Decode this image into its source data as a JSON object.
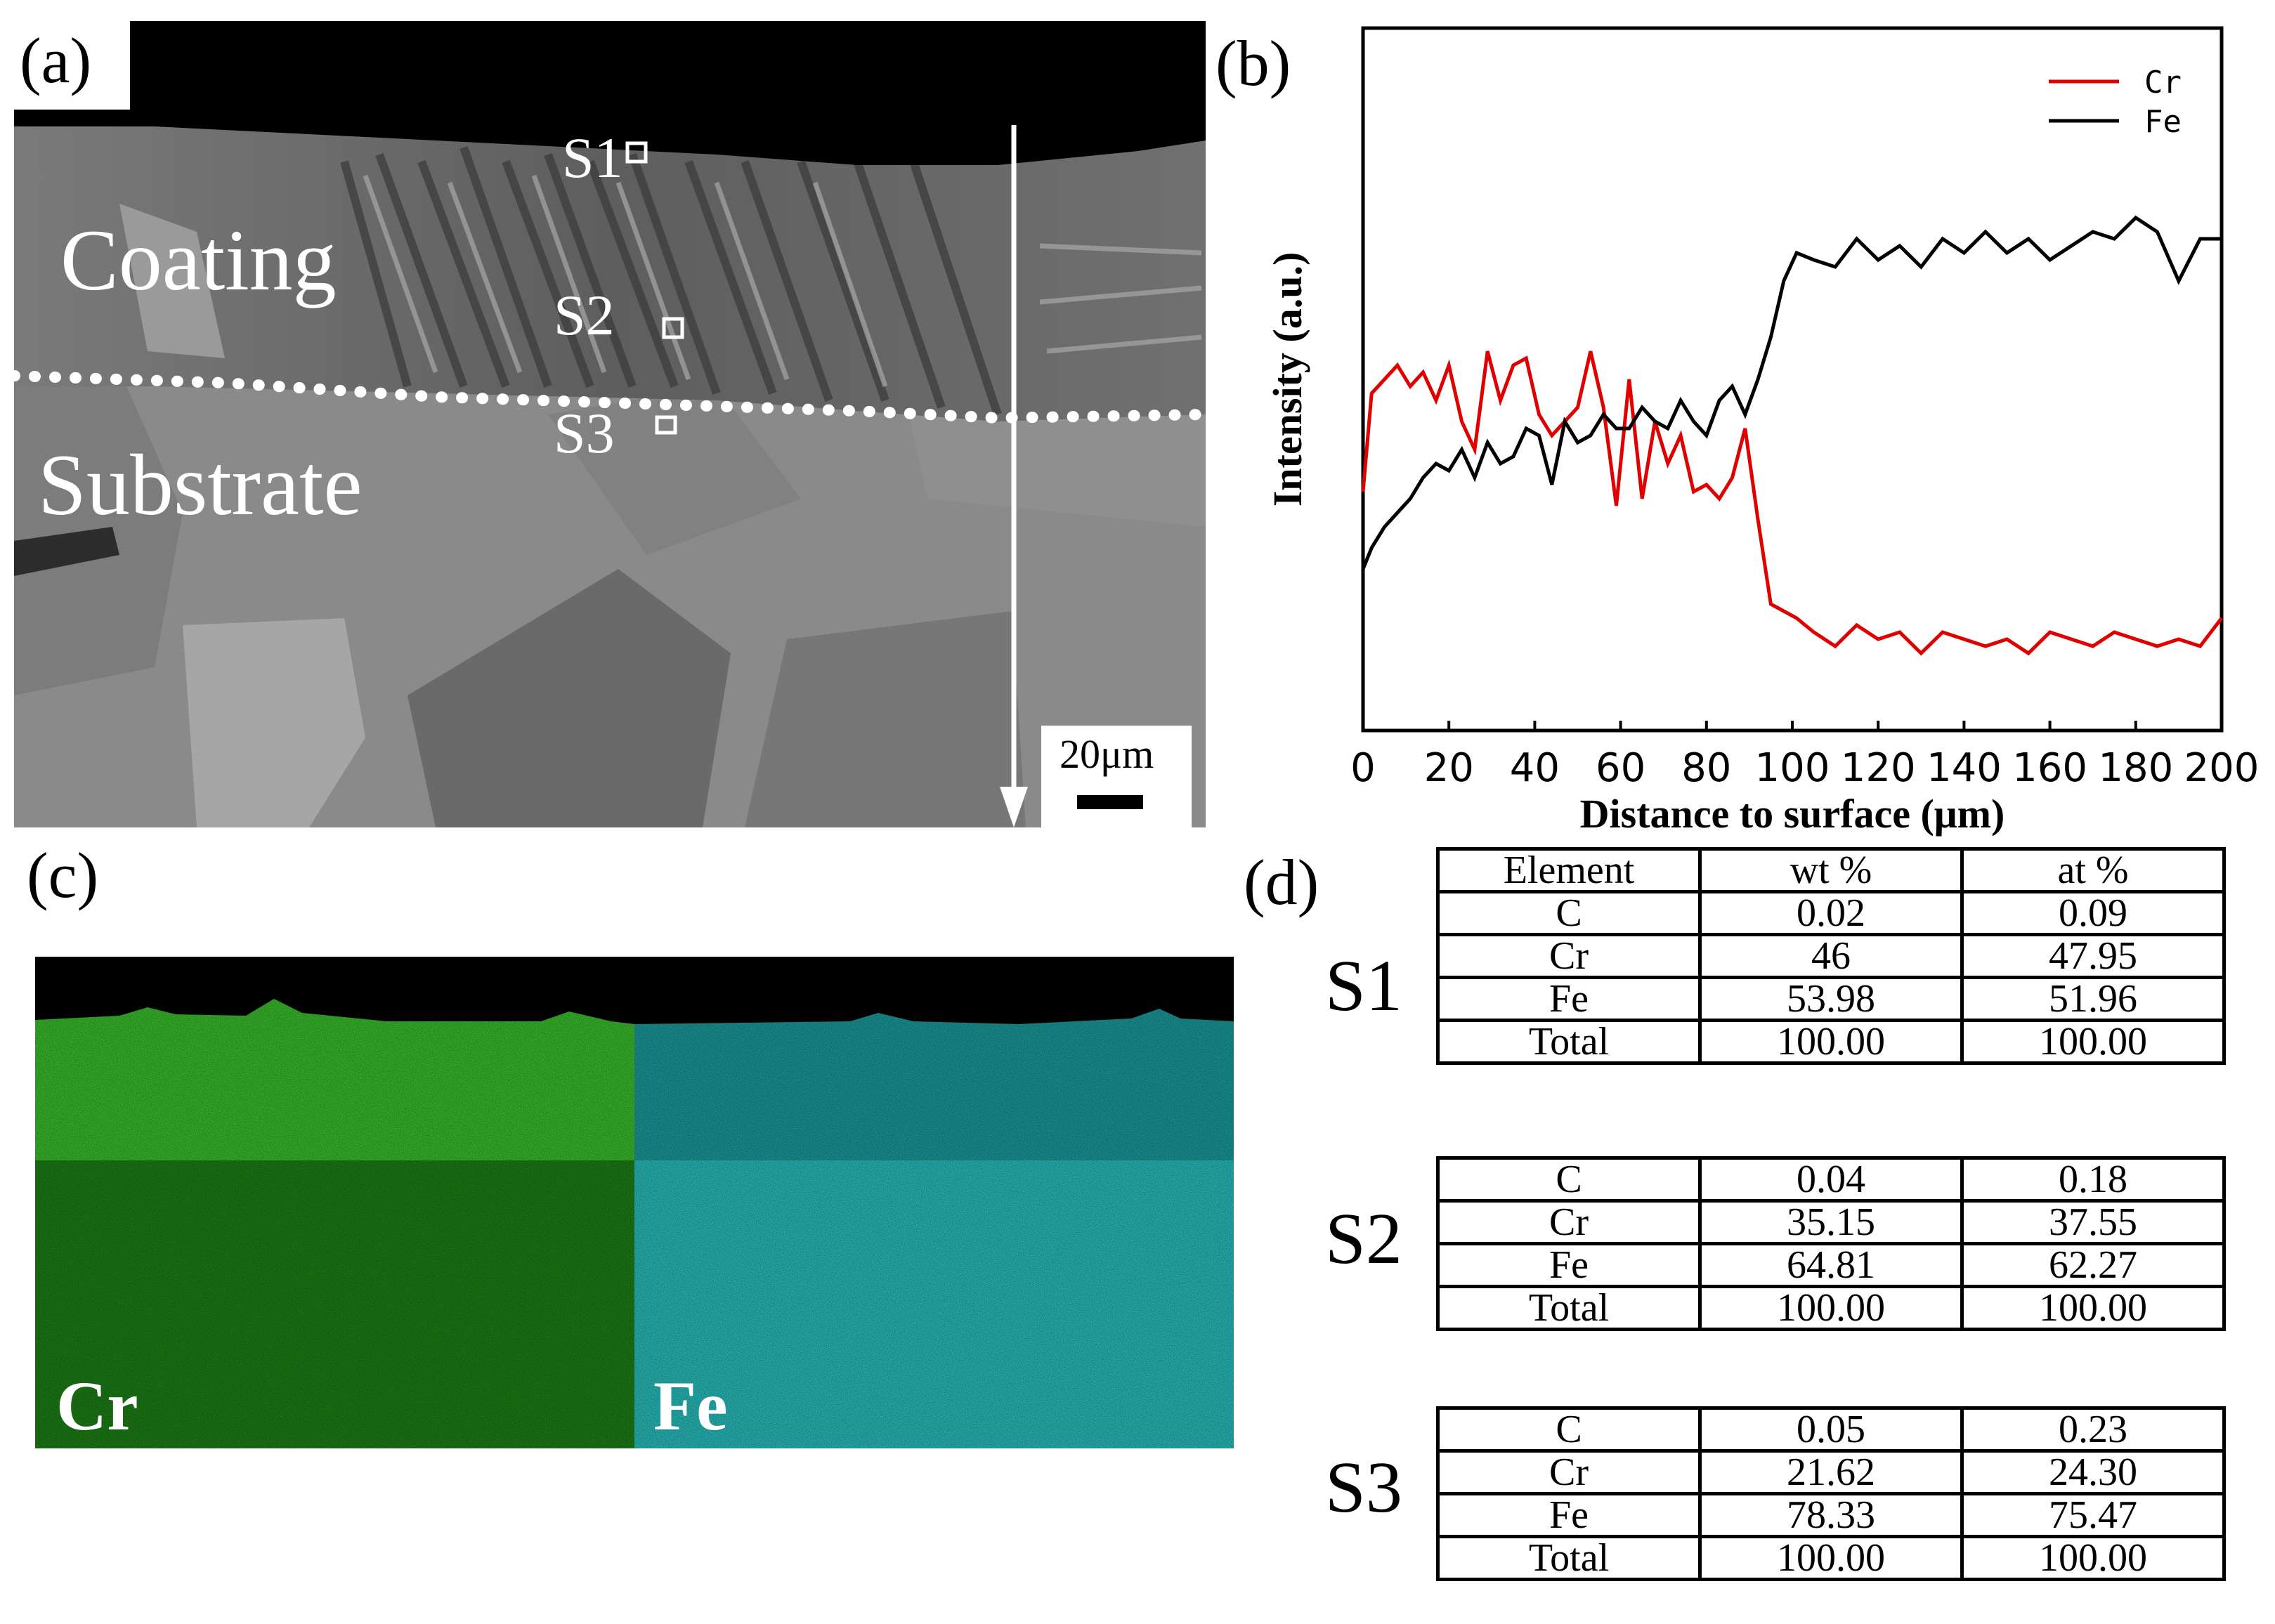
{
  "panels": {
    "a": "(a)",
    "b": "(b)",
    "c": "(c)",
    "d": "(d)"
  },
  "sem": {
    "coating_label": "Coating",
    "substrate_label": "Substrate",
    "points": [
      "S1",
      "S2",
      "S3"
    ],
    "scale_bar": "20μm"
  },
  "eds_map": {
    "left_label": "Cr",
    "right_label": "Fe",
    "colors": {
      "cr": "#22c41c",
      "fe": "#2fd6d6"
    }
  },
  "chart_data": {
    "type": "line",
    "title": "",
    "xlabel": "Distance to surface (μm)",
    "ylabel": "Intensity (a.u.)",
    "xlim": [
      0,
      200
    ],
    "ylim": [
      0,
      100
    ],
    "xticks": [
      0,
      20,
      40,
      60,
      80,
      100,
      120,
      140,
      160,
      180,
      200
    ],
    "legend_position": "top-right",
    "series": [
      {
        "name": "Cr",
        "color": "#e00000",
        "x": [
          0,
          2,
          5,
          8,
          11,
          14,
          17,
          20,
          23,
          26,
          29,
          32,
          35,
          38,
          41,
          44,
          47,
          50,
          53,
          56,
          59,
          62,
          65,
          68,
          71,
          74,
          77,
          80,
          83,
          86,
          89,
          92,
          95,
          98,
          101,
          105,
          110,
          115,
          120,
          125,
          130,
          135,
          140,
          145,
          150,
          155,
          160,
          165,
          170,
          175,
          180,
          185,
          190,
          195,
          200
        ],
        "y": [
          34,
          48,
          50,
          52,
          49,
          51,
          47,
          52,
          44,
          40,
          54,
          47,
          52,
          53,
          45,
          42,
          44,
          46,
          54,
          46,
          32,
          50,
          33,
          44,
          38,
          42,
          34,
          35,
          33,
          36,
          43,
          30,
          18,
          17,
          16,
          14,
          12,
          15,
          13,
          14,
          11,
          14,
          13,
          12,
          13,
          11,
          14,
          13,
          12,
          14,
          13,
          12,
          13,
          12,
          16
        ]
      },
      {
        "name": "Fe",
        "color": "#000000",
        "x": [
          0,
          2,
          5,
          8,
          11,
          14,
          17,
          20,
          23,
          26,
          29,
          32,
          35,
          38,
          41,
          44,
          47,
          50,
          53,
          56,
          59,
          62,
          65,
          68,
          71,
          74,
          77,
          80,
          83,
          86,
          89,
          92,
          95,
          98,
          101,
          105,
          110,
          115,
          120,
          125,
          130,
          135,
          140,
          145,
          150,
          155,
          160,
          165,
          170,
          175,
          180,
          185,
          190,
          195,
          200
        ],
        "y": [
          23,
          26,
          29,
          31,
          33,
          36,
          38,
          37,
          40,
          36,
          41,
          38,
          39,
          43,
          42,
          35,
          44,
          41,
          42,
          45,
          43,
          43,
          46,
          44,
          43,
          47,
          44,
          42,
          47,
          49,
          45,
          50,
          56,
          64,
          68,
          67,
          66,
          70,
          67,
          69,
          66,
          70,
          68,
          71,
          68,
          70,
          67,
          69,
          71,
          70,
          73,
          71,
          64,
          70,
          70
        ]
      }
    ]
  },
  "eds_table": {
    "headers": [
      "Element",
      "wt %",
      "at %"
    ],
    "samples": [
      {
        "label": "S1",
        "rows": [
          [
            "C",
            "0.02",
            "0.09"
          ],
          [
            "Cr",
            "46",
            "47.95"
          ],
          [
            "Fe",
            "53.98",
            "51.96"
          ],
          [
            "Total",
            "100.00",
            "100.00"
          ]
        ]
      },
      {
        "label": "S2",
        "rows": [
          [
            "C",
            "0.04",
            "0.18"
          ],
          [
            "Cr",
            "35.15",
            "37.55"
          ],
          [
            "Fe",
            "64.81",
            "62.27"
          ],
          [
            "Total",
            "100.00",
            "100.00"
          ]
        ]
      },
      {
        "label": "S3",
        "rows": [
          [
            "C",
            "0.05",
            "0.23"
          ],
          [
            "Cr",
            "21.62",
            "24.30"
          ],
          [
            "Fe",
            "78.33",
            "75.47"
          ],
          [
            "Total",
            "100.00",
            "100.00"
          ]
        ]
      }
    ]
  }
}
